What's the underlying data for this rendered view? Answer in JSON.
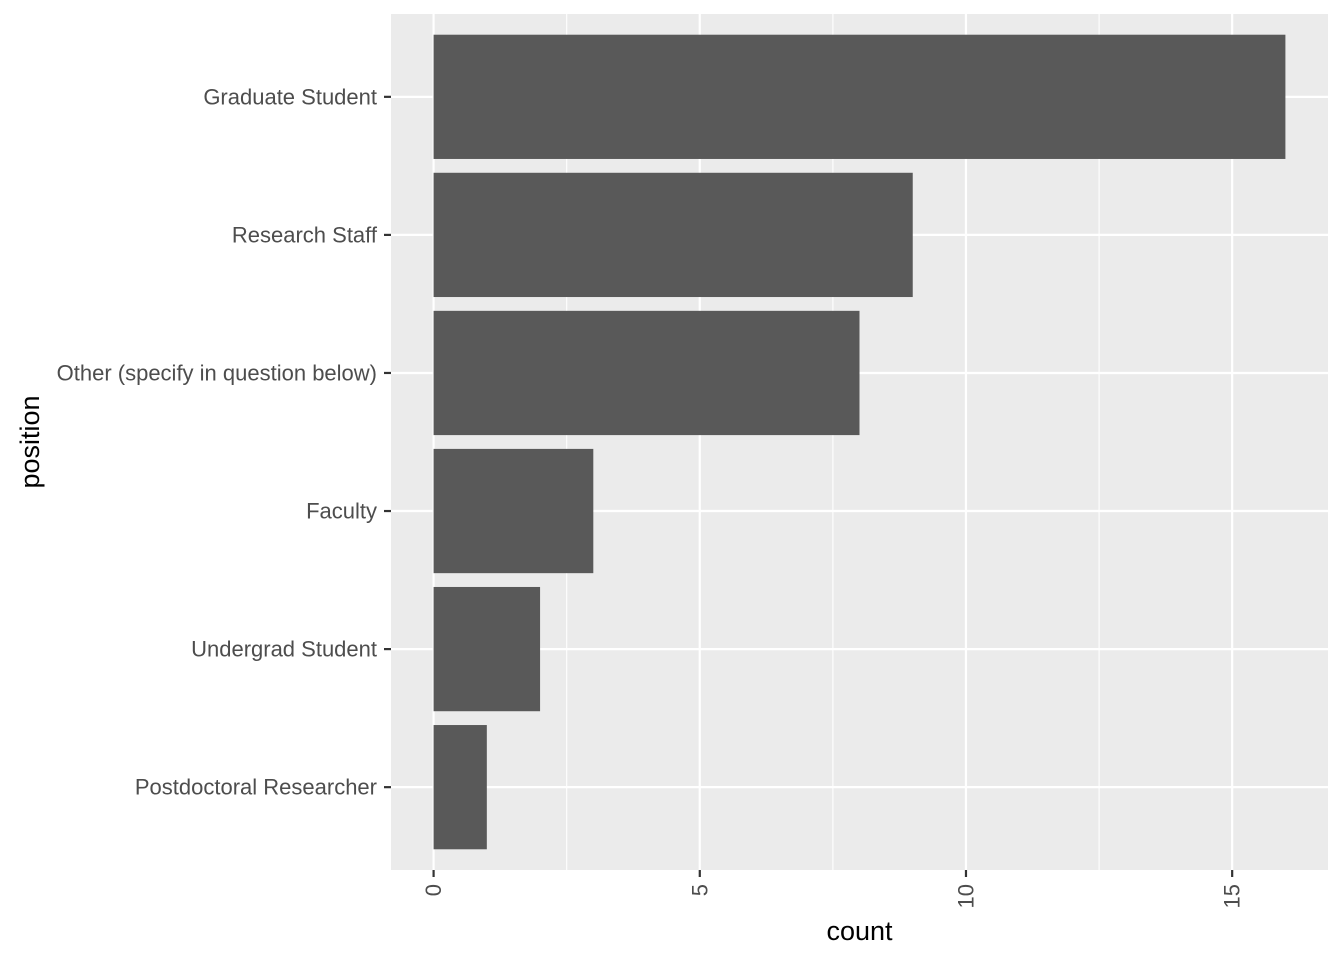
{
  "chart_data": {
    "type": "bar",
    "orientation": "horizontal",
    "categories": [
      "Graduate Student",
      "Research Staff",
      "Other (specify in question below)",
      "Faculty",
      "Undergrad Student",
      "Postdoctoral Researcher"
    ],
    "values": [
      16,
      9,
      8,
      3,
      2,
      1
    ],
    "xlabel": "count",
    "ylabel": "position",
    "xlim": [
      -0.8,
      16.8
    ],
    "xticks": [
      0,
      5,
      10,
      15
    ],
    "tick_labels": [
      "0",
      "5",
      "10",
      "15"
    ],
    "grid": true,
    "colors": {
      "panel": "#ebebeb",
      "bar": "#595959",
      "grid_major": "#ffffff",
      "tick_text": "#4d4d4d",
      "axis_title": "#000000"
    }
  }
}
